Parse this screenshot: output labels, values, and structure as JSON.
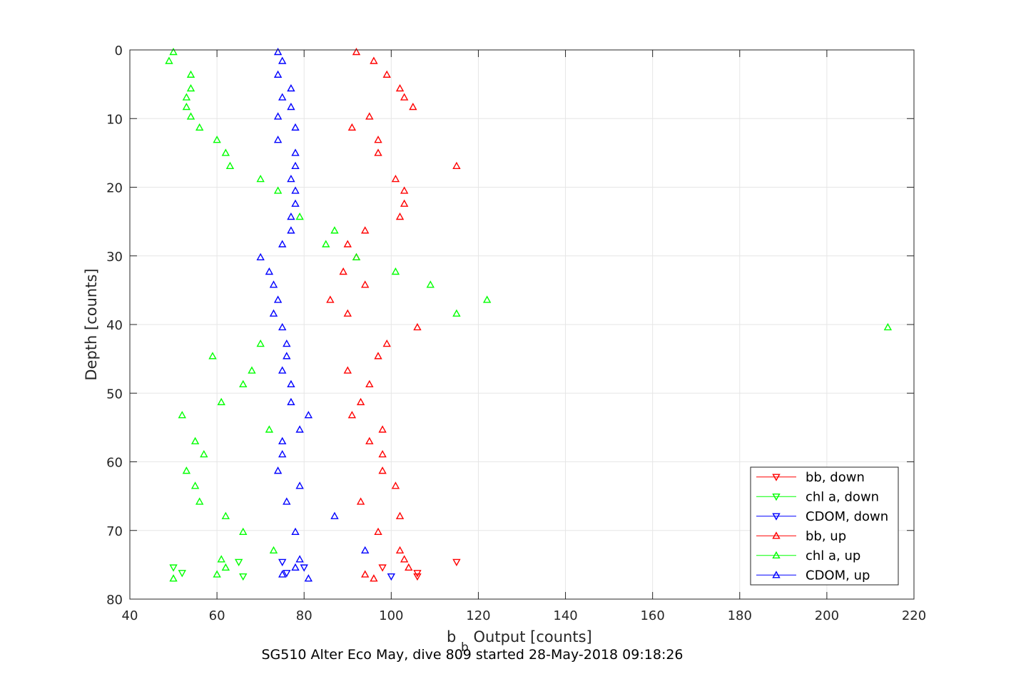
{
  "chart_data": {
    "type": "scatter",
    "title": "SG510 Alter Eco May, dive 809 started 28-May-2018 09:18:26",
    "xlabel_main": "b",
    "xlabel_sub": "b",
    "xlabel_rest": " Output [counts]",
    "ylabel": "Depth [counts]",
    "xlim": [
      40,
      220
    ],
    "ylim": [
      0,
      80
    ],
    "y_reversed": true,
    "grid": true,
    "legend_position": "bottom-right",
    "xticks": [
      40,
      60,
      80,
      100,
      120,
      140,
      160,
      180,
      200,
      220
    ],
    "yticks": [
      0,
      10,
      20,
      30,
      40,
      50,
      60,
      70,
      80
    ],
    "series": [
      {
        "name": "bb, down",
        "color": "#ff0000",
        "marker": "triangle-down",
        "points": [
          [
            115,
            74.6
          ],
          [
            98,
            75.4
          ],
          [
            106,
            76.2
          ],
          [
            106,
            76.7
          ]
        ]
      },
      {
        "name": "chl a, down",
        "color": "#00ff00",
        "marker": "triangle-down",
        "points": [
          [
            65,
            74.6
          ],
          [
            50,
            75.4
          ],
          [
            52,
            76.2
          ],
          [
            66,
            76.7
          ]
        ]
      },
      {
        "name": "CDOM, down",
        "color": "#0000ff",
        "marker": "triangle-down",
        "points": [
          [
            75,
            74.6
          ],
          [
            80,
            75.4
          ],
          [
            76,
            76.2
          ],
          [
            100,
            76.7
          ]
        ]
      },
      {
        "name": "bb, up",
        "color": "#ff0000",
        "marker": "triangle-up",
        "points": [
          [
            92,
            0.3
          ],
          [
            96,
            1.6
          ],
          [
            99,
            3.6
          ],
          [
            102,
            5.6
          ],
          [
            103,
            6.9
          ],
          [
            105,
            8.3
          ],
          [
            95,
            9.7
          ],
          [
            91,
            11.3
          ],
          [
            97,
            13.1
          ],
          [
            97,
            15.0
          ],
          [
            115,
            16.9
          ],
          [
            101,
            18.8
          ],
          [
            103,
            20.5
          ],
          [
            103,
            22.4
          ],
          [
            102,
            24.3
          ],
          [
            94,
            26.3
          ],
          [
            90,
            28.3
          ],
          [
            92,
            30.2
          ],
          [
            89,
            32.3
          ],
          [
            94,
            34.2
          ],
          [
            86,
            36.4
          ],
          [
            90,
            38.4
          ],
          [
            106,
            40.4
          ],
          [
            99,
            42.8
          ],
          [
            97,
            44.6
          ],
          [
            90,
            46.7
          ],
          [
            95,
            48.7
          ],
          [
            93,
            51.3
          ],
          [
            91,
            53.2
          ],
          [
            98,
            55.3
          ],
          [
            95,
            57.0
          ],
          [
            98,
            58.9
          ],
          [
            98,
            61.3
          ],
          [
            101,
            63.5
          ],
          [
            93,
            65.8
          ],
          [
            102,
            67.9
          ],
          [
            97,
            70.2
          ],
          [
            102,
            72.9
          ],
          [
            103,
            74.2
          ],
          [
            104,
            75.4
          ],
          [
            94,
            76.4
          ],
          [
            96,
            77.0
          ]
        ]
      },
      {
        "name": "chl a, up",
        "color": "#00ff00",
        "marker": "triangle-up",
        "points": [
          [
            50,
            0.3
          ],
          [
            49,
            1.6
          ],
          [
            54,
            3.6
          ],
          [
            54,
            5.6
          ],
          [
            53,
            6.9
          ],
          [
            53,
            8.3
          ],
          [
            54,
            9.7
          ],
          [
            56,
            11.3
          ],
          [
            60,
            13.1
          ],
          [
            62,
            15.0
          ],
          [
            63,
            16.9
          ],
          [
            70,
            18.8
          ],
          [
            74,
            20.5
          ],
          [
            79,
            24.3
          ],
          [
            87,
            26.3
          ],
          [
            85,
            28.3
          ],
          [
            92,
            30.2
          ],
          [
            101,
            32.3
          ],
          [
            109,
            34.2
          ],
          [
            122,
            36.4
          ],
          [
            115,
            38.4
          ],
          [
            214,
            40.4
          ],
          [
            70,
            42.8
          ],
          [
            59,
            44.6
          ],
          [
            68,
            46.7
          ],
          [
            66,
            48.7
          ],
          [
            61,
            51.3
          ],
          [
            52,
            53.2
          ],
          [
            72,
            55.3
          ],
          [
            55,
            57.0
          ],
          [
            57,
            58.9
          ],
          [
            53,
            61.3
          ],
          [
            55,
            63.5
          ],
          [
            56,
            65.8
          ],
          [
            62,
            67.9
          ],
          [
            66,
            70.2
          ],
          [
            73,
            72.9
          ],
          [
            61,
            74.2
          ],
          [
            62,
            75.4
          ],
          [
            60,
            76.4
          ],
          [
            50,
            77.0
          ]
        ]
      },
      {
        "name": "CDOM, up",
        "color": "#0000ff",
        "marker": "triangle-up",
        "points": [
          [
            74,
            0.3
          ],
          [
            75,
            1.6
          ],
          [
            74,
            3.6
          ],
          [
            77,
            5.6
          ],
          [
            75,
            6.9
          ],
          [
            77,
            8.3
          ],
          [
            74,
            9.7
          ],
          [
            78,
            11.3
          ],
          [
            74,
            13.1
          ],
          [
            78,
            15.0
          ],
          [
            78,
            16.9
          ],
          [
            77,
            18.8
          ],
          [
            78,
            20.5
          ],
          [
            78,
            22.4
          ],
          [
            77,
            24.3
          ],
          [
            77,
            26.3
          ],
          [
            75,
            28.3
          ],
          [
            70,
            30.2
          ],
          [
            72,
            32.3
          ],
          [
            73,
            34.2
          ],
          [
            74,
            36.4
          ],
          [
            73,
            38.4
          ],
          [
            75,
            40.4
          ],
          [
            76,
            42.8
          ],
          [
            76,
            44.6
          ],
          [
            75,
            46.7
          ],
          [
            77,
            48.7
          ],
          [
            77,
            51.3
          ],
          [
            81,
            53.2
          ],
          [
            79,
            55.3
          ],
          [
            75,
            57.0
          ],
          [
            75,
            58.9
          ],
          [
            74,
            61.3
          ],
          [
            79,
            63.5
          ],
          [
            76,
            65.8
          ],
          [
            87,
            67.9
          ],
          [
            78,
            70.2
          ],
          [
            94,
            72.9
          ],
          [
            79,
            74.2
          ],
          [
            78,
            75.4
          ],
          [
            75,
            76.4
          ],
          [
            81,
            77.0
          ]
        ]
      }
    ]
  }
}
